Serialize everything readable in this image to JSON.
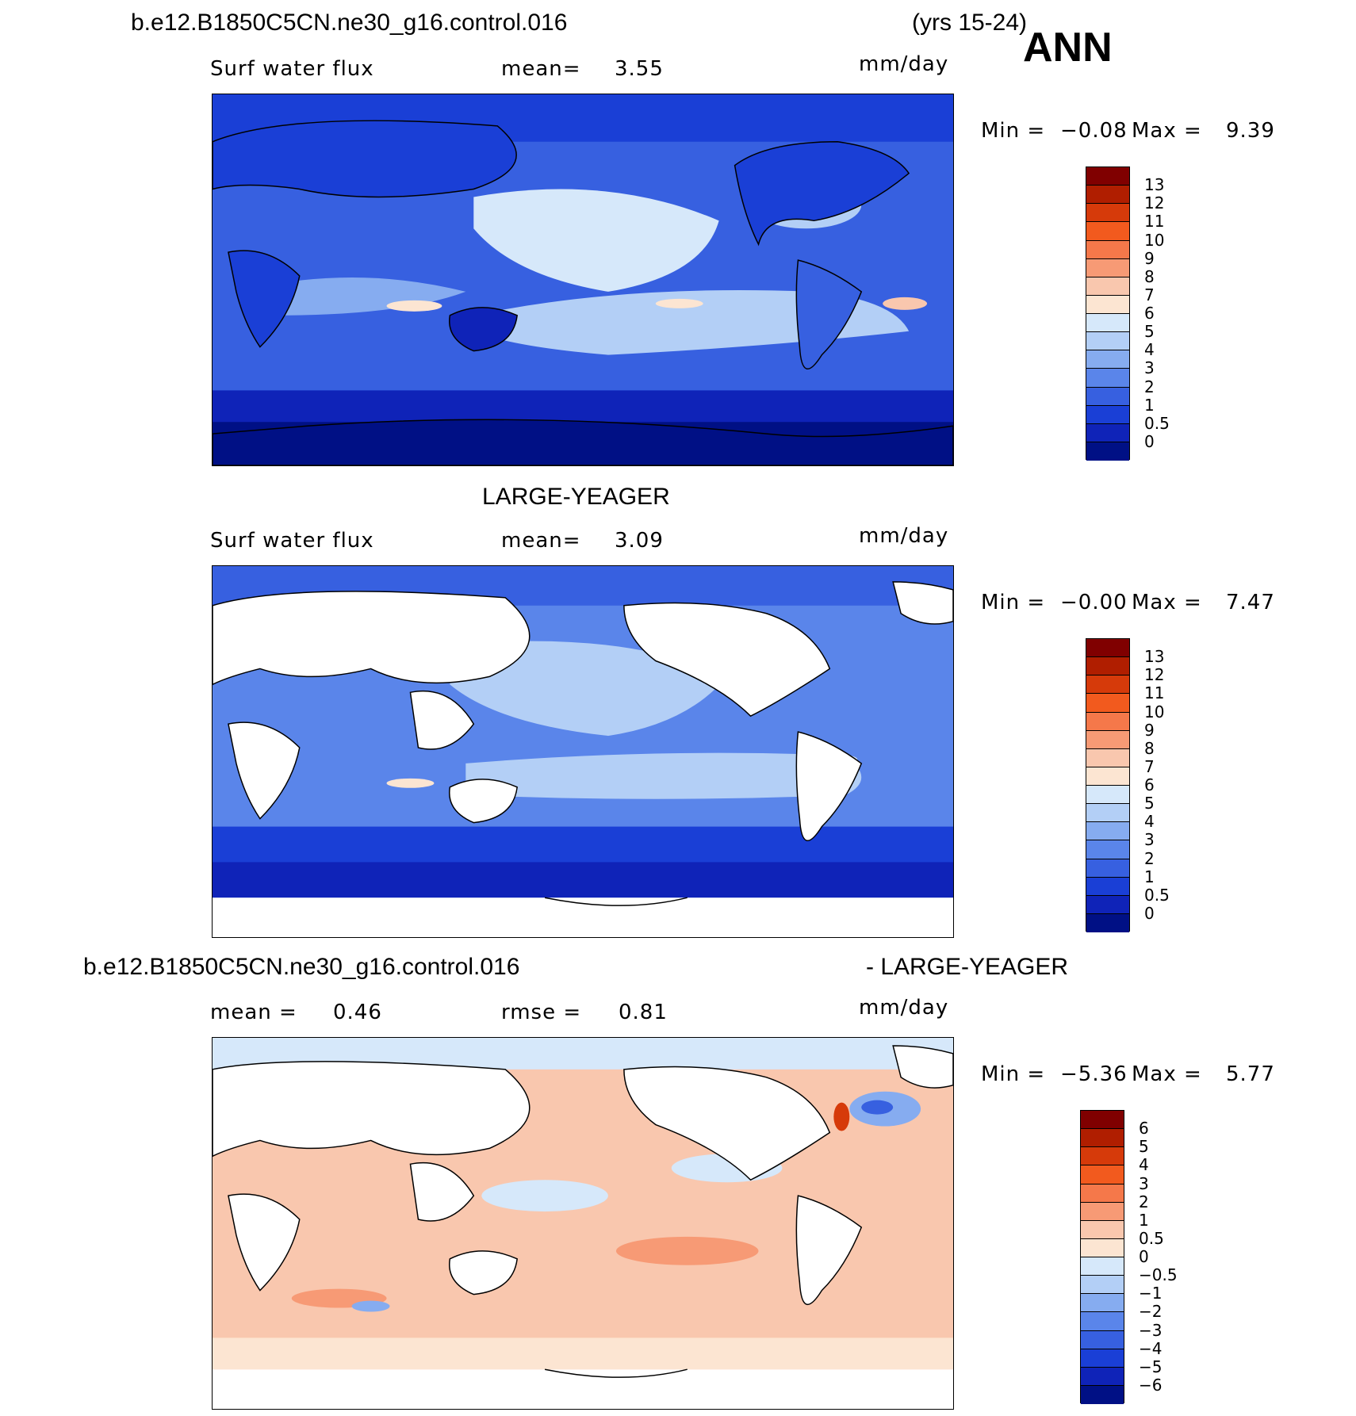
{
  "header": {
    "case_name": "b.e12.B1850C5CN.ne30_g16.control.016",
    "years": "(yrs 15-24)",
    "season": "ANN"
  },
  "panels": [
    {
      "id": "model",
      "top_title": "",
      "left_label": "Surf water flux",
      "center_label": "mean=",
      "center_value": "3.55",
      "units": "mm/day",
      "min_label": "Min =",
      "min_value": "−0.08",
      "max_label": "Max =",
      "max_value": "9.39",
      "colorbar_labels": [
        "13",
        "12",
        "11",
        "10",
        "9",
        "8",
        "7",
        "6",
        "5",
        "4",
        "3",
        "2",
        "1",
        "0.5",
        "0"
      ],
      "colorbar_colors": [
        "#800000",
        "#b01e00",
        "#d63a0a",
        "#f25a1e",
        "#f5784a",
        "#f79a75",
        "#f9c7ae",
        "#fce5d2",
        "#d6e8fa",
        "#b3cff6",
        "#86acf0",
        "#5a85ea",
        "#3760e0",
        "#1a3fd6",
        "#0f23b8",
        "#001085"
      ]
    },
    {
      "id": "obs",
      "top_title": "LARGE-YEAGER",
      "left_label": "Surf water flux",
      "center_label": "mean=",
      "center_value": "3.09",
      "units": "mm/day",
      "min_label": "Min =",
      "min_value": "−0.00",
      "max_label": "Max =",
      "max_value": "7.47",
      "colorbar_labels": [
        "13",
        "12",
        "11",
        "10",
        "9",
        "8",
        "7",
        "6",
        "5",
        "4",
        "3",
        "2",
        "1",
        "0.5",
        "0"
      ],
      "colorbar_colors": [
        "#800000",
        "#b01e00",
        "#d63a0a",
        "#f25a1e",
        "#f5784a",
        "#f79a75",
        "#f9c7ae",
        "#fce5d2",
        "#d6e8fa",
        "#b3cff6",
        "#86acf0",
        "#5a85ea",
        "#3760e0",
        "#1a3fd6",
        "#0f23b8",
        "#001085"
      ]
    },
    {
      "id": "diff",
      "top_title_left": "b.e12.B1850C5CN.ne30_g16.control.016",
      "top_title_right": "- LARGE-YEAGER",
      "left_label": "mean =",
      "left_value": "0.46",
      "center_label": "rmse =",
      "center_value": "0.81",
      "units": "mm/day",
      "min_label": "Min =",
      "min_value": "−5.36",
      "max_label": "Max =",
      "max_value": "5.77",
      "colorbar_labels": [
        "6",
        "5",
        "4",
        "3",
        "2",
        "1",
        "0.5",
        "0",
        "−0.5",
        "−1",
        "−2",
        "−3",
        "−4",
        "−5",
        "−6"
      ],
      "colorbar_colors": [
        "#800000",
        "#b01e00",
        "#d63a0a",
        "#f25a1e",
        "#f5784a",
        "#f79a75",
        "#f9c7ae",
        "#fce5d2",
        "#d6e8fa",
        "#b3cff6",
        "#86acf0",
        "#5a85ea",
        "#3760e0",
        "#1a3fd6",
        "#0f23b8",
        "#001085"
      ]
    }
  ],
  "colors": {
    "ocean_model_mid": "#86acf0",
    "ocean_obs_mid": "#86acf0",
    "land_obs": "#ffffff",
    "diff_positive": "#f9c7ae",
    "diff_negative": "#d6e8fa"
  }
}
